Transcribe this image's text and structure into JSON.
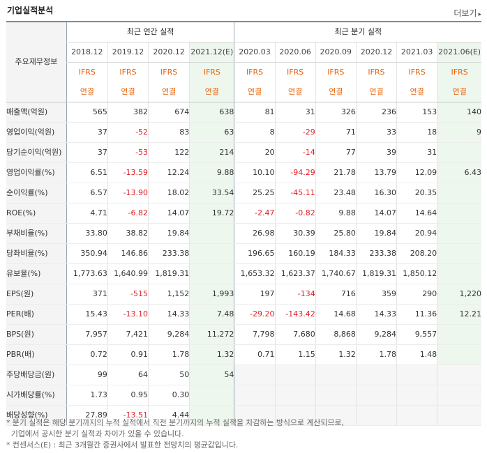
{
  "title": "기업실적분석",
  "more_label": "더보기",
  "more_arrow": "▸",
  "row_header": "주요재무정보",
  "group_annual": "최근 연간 실적",
  "group_quarter": "최근 분기 실적",
  "periods": [
    "2018.12",
    "2019.12",
    "2020.12",
    "2021.12(E)",
    "2020.03",
    "2020.06",
    "2020.09",
    "2020.12",
    "2021.03",
    "2021.06(E)"
  ],
  "standard_top": "IFRS",
  "standard_bottom": "연결",
  "rows": [
    {
      "label": "매출액(억원)",
      "values": [
        "565",
        "382",
        "674",
        "638",
        "81",
        "31",
        "326",
        "236",
        "153",
        "140"
      ]
    },
    {
      "label": "영업이익(억원)",
      "values": [
        "37",
        "-52",
        "83",
        "63",
        "8",
        "-29",
        "71",
        "33",
        "18",
        "9"
      ]
    },
    {
      "label": "당기순이익(억원)",
      "values": [
        "37",
        "-53",
        "122",
        "214",
        "20",
        "-14",
        "77",
        "39",
        "31",
        ""
      ]
    },
    {
      "label": "영업이익률(%)",
      "values": [
        "6.51",
        "-13.59",
        "12.24",
        "9.88",
        "10.10",
        "-94.29",
        "21.78",
        "13.79",
        "12.09",
        "6.43"
      ]
    },
    {
      "label": "순이익률(%)",
      "values": [
        "6.57",
        "-13.90",
        "18.02",
        "33.54",
        "25.25",
        "-45.11",
        "23.48",
        "16.30",
        "20.35",
        ""
      ]
    },
    {
      "label": "ROE(%)",
      "values": [
        "4.71",
        "-6.82",
        "14.07",
        "19.72",
        "-2.47",
        "-0.82",
        "9.88",
        "14.07",
        "14.64",
        ""
      ]
    },
    {
      "label": "부채비율(%)",
      "values": [
        "33.80",
        "38.82",
        "19.84",
        "",
        "26.98",
        "30.39",
        "25.80",
        "19.84",
        "20.94",
        ""
      ]
    },
    {
      "label": "당좌비율(%)",
      "values": [
        "350.94",
        "146.86",
        "233.38",
        "",
        "196.65",
        "160.19",
        "184.33",
        "233.38",
        "208.20",
        ""
      ]
    },
    {
      "label": "유보율(%)",
      "values": [
        "1,773.63",
        "1,640.99",
        "1,819.31",
        "",
        "1,653.32",
        "1,623.37",
        "1,740.67",
        "1,819.31",
        "1,850.12",
        ""
      ]
    },
    {
      "label": "EPS(원)",
      "values": [
        "371",
        "-515",
        "1,152",
        "1,993",
        "197",
        "-134",
        "716",
        "359",
        "290",
        "1,220"
      ]
    },
    {
      "label": "PER(배)",
      "values": [
        "15.43",
        "-13.10",
        "14.33",
        "7.48",
        "-29.20",
        "-143.42",
        "14.68",
        "14.33",
        "11.36",
        "12.21"
      ]
    },
    {
      "label": "BPS(원)",
      "values": [
        "7,957",
        "7,421",
        "9,284",
        "11,272",
        "7,798",
        "7,680",
        "8,868",
        "9,284",
        "9,557",
        ""
      ]
    },
    {
      "label": "PBR(배)",
      "values": [
        "0.72",
        "0.91",
        "1.78",
        "1.32",
        "0.71",
        "1.15",
        "1.32",
        "1.78",
        "1.48",
        ""
      ]
    },
    {
      "label": "주당배당금(원)",
      "values": [
        "99",
        "64",
        "50",
        "54",
        "",
        "",
        "",
        "",
        "",
        ""
      ]
    },
    {
      "label": "시가배당률(%)",
      "values": [
        "1.73",
        "0.95",
        "0.30",
        "",
        "",
        "",
        "",
        "",
        "",
        ""
      ]
    },
    {
      "label": "배당성향(%)",
      "values": [
        "27.89",
        "-13.51",
        "4.44",
        "",
        "",
        "",
        "",
        "",
        "",
        ""
      ]
    }
  ],
  "notes": [
    "* 분기 실적은 해당 분기까지의 누적 실적에서 직전 분기까지의 누적 실적을 차감하는 방식으로 계산되므로,",
    "  기업에서 공시한 분기 실적과 차이가 있을 수 있습니다.",
    "* 컨센서스(E) : 최근 3개월간 증권사에서 발표한 전망치의 평균값입니다."
  ]
}
